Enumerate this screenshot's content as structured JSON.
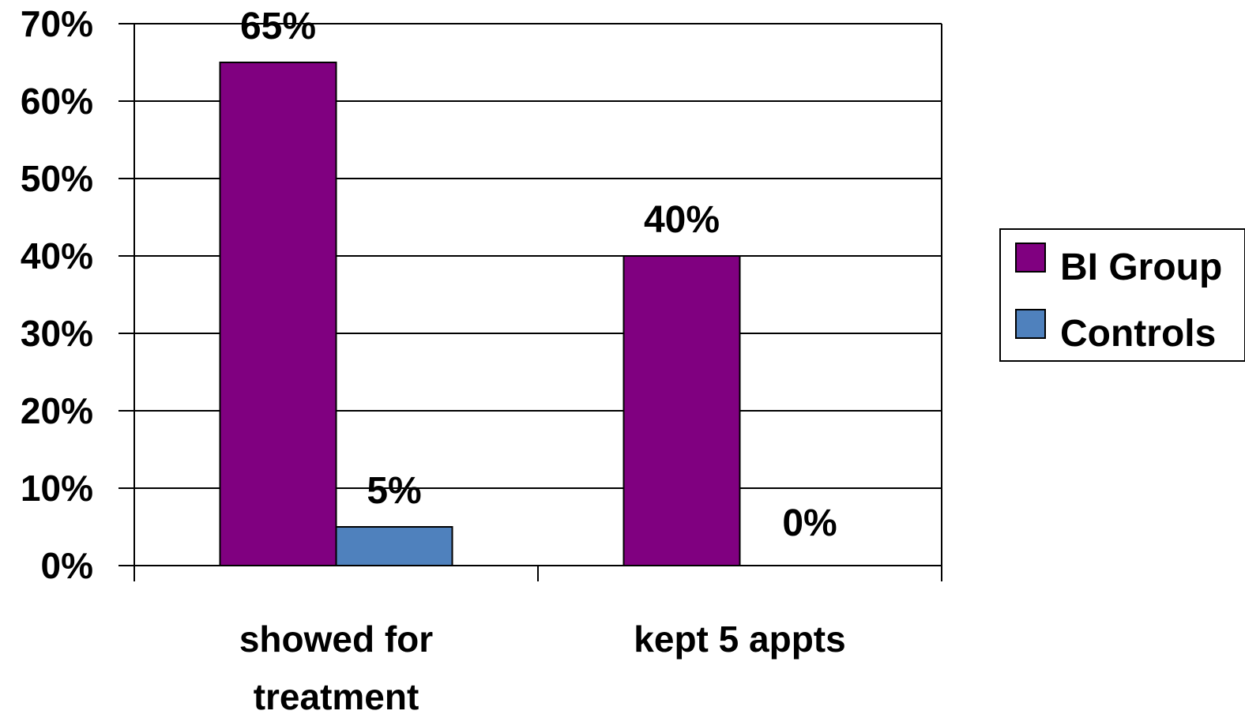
{
  "chart_data": {
    "type": "bar",
    "categories": [
      [
        "showed for",
        "treatment"
      ],
      [
        "kept 5 appts"
      ]
    ],
    "series": [
      {
        "name": "BI Group",
        "values": [
          65,
          40
        ],
        "labels": [
          "65%",
          "40%"
        ],
        "color": "#800080"
      },
      {
        "name": "Controls",
        "values": [
          5,
          0
        ],
        "labels": [
          "5%",
          "0%"
        ],
        "color": "#4F81BD"
      }
    ],
    "ylim": [
      0,
      70
    ],
    "yticks": [
      0,
      10,
      20,
      30,
      40,
      50,
      60,
      70
    ],
    "ytick_labels": [
      "0%",
      "10%",
      "20%",
      "30%",
      "40%",
      "50%",
      "60%",
      "70%"
    ],
    "grid": true,
    "legend": "right",
    "title": "",
    "xlabel": "",
    "ylabel": ""
  }
}
